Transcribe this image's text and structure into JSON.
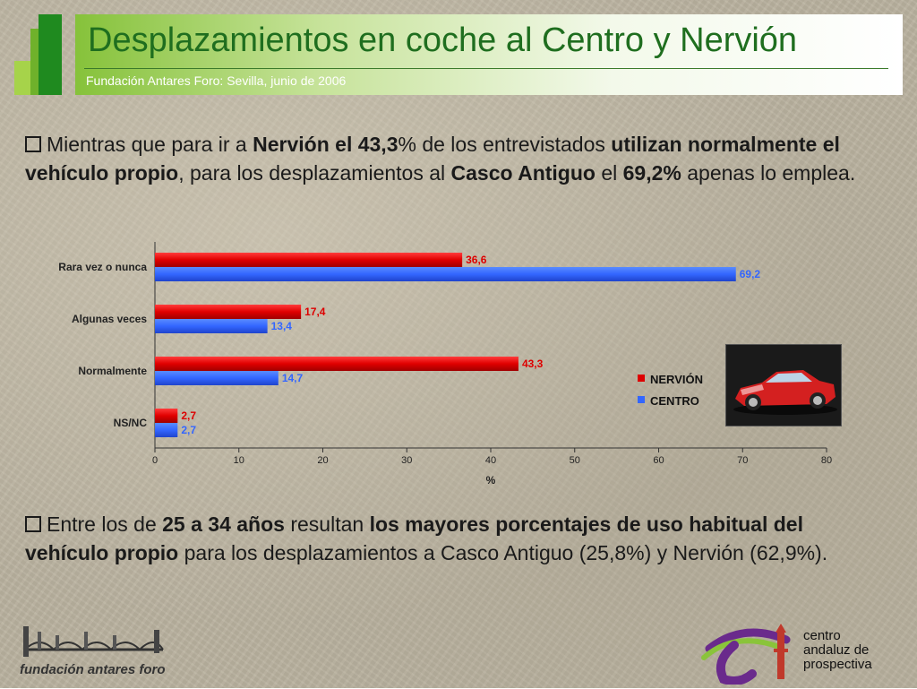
{
  "header": {
    "title": "Desplazamientos en coche al Centro y Nervión",
    "subtitle": "Fundación Antares Foro: Sevilla, junio de 2006"
  },
  "bullet1": {
    "t1": "Mientras que para ir a ",
    "b1": "Nervión el 43,3",
    "t2": "% de los entrevistados ",
    "b2": "utilizan normalmente el vehículo propio",
    "t3": ", para los desplazamientos al ",
    "b3": "Casco Antiguo",
    "t4": " el ",
    "b4": "69,2%",
    "t5": " apenas lo emplea."
  },
  "bullet2": {
    "t1": "Entre los de ",
    "b1": "25 a 34 años",
    "t2": " resultan ",
    "b2": "los mayores porcentajes de uso habitual del vehículo propio",
    "t3": " para los desplazamientos a Casco Antiguo (25,8%) y Nervión (62,9%)."
  },
  "colors": {
    "nervion": "#dd0000",
    "centro": "#3366ff",
    "title": "#1f6e1f"
  },
  "chart_data": {
    "type": "bar",
    "orientation": "horizontal",
    "categories": [
      "Rara vez o nunca",
      "Algunas veces",
      "Normalmente",
      "NS/NC"
    ],
    "series": [
      {
        "name": "NERVIÓN",
        "values": [
          36.6,
          17.4,
          43.3,
          2.7
        ],
        "labels": [
          "36,6",
          "17,4",
          "43,3",
          "2,7"
        ]
      },
      {
        "name": "CENTRO",
        "values": [
          69.2,
          13.4,
          14.7,
          2.7
        ],
        "labels": [
          "69,2",
          "13,4",
          "14,7",
          "2,7"
        ]
      }
    ],
    "xlabel": "%",
    "xlim": [
      0,
      80
    ],
    "xticks": [
      "0",
      "10",
      "20",
      "30",
      "40",
      "50",
      "60",
      "70",
      "80"
    ],
    "grid": false,
    "legend_position": "right"
  },
  "footer": {
    "fundacion": "fundación antares foro",
    "cap_line1": "centro",
    "cap_line2": "andaluz de",
    "cap_line3": "prospectiva"
  }
}
